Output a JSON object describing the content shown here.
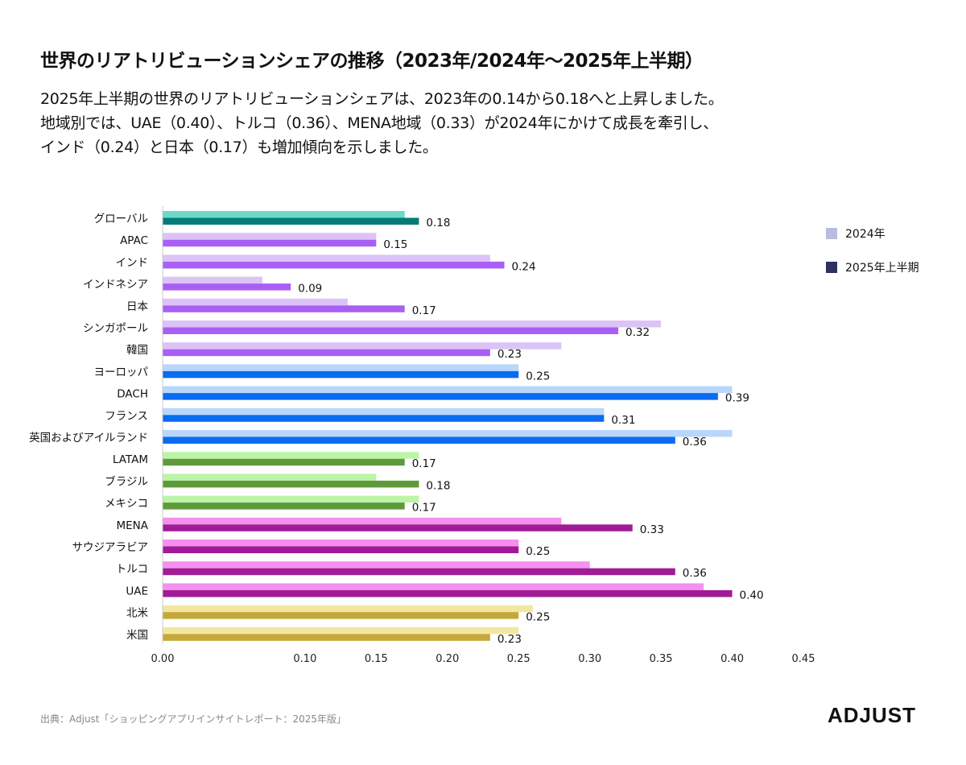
{
  "title": "世界のリアトリビューションシェアの推移（2023年/2024年〜2025年上半期）",
  "subtitle": [
    "2025年上半期の世界のリアトリビューションシェアは、2023年の0.14から0.18へと上昇しました。",
    "地域別では、UAE（0.40）、トルコ（0.36）、MENA地域（0.33）が2024年にかけて成長を牽引し、",
    "インド（0.24）と日本（0.17）も増加傾向を示しました。"
  ],
  "source": "出典：Adjust「ショッピングアプリインサイトレポート：2025年版」",
  "logo": "ADJUST",
  "chart_data": {
    "type": "bar",
    "orientation": "horizontal",
    "xlim": [
      0,
      0.45
    ],
    "xticks": [
      "0.00",
      "0.10",
      "0.15",
      "0.20",
      "0.25",
      "0.30",
      "0.35",
      "0.40",
      "0.45"
    ],
    "xtick_values": [
      0,
      0.1,
      0.15,
      0.2,
      0.25,
      0.3,
      0.35,
      0.4,
      0.45
    ],
    "legend_position": "right",
    "grid": false,
    "categories": [
      "グローバル",
      "APAC",
      "インド",
      "インドネシア",
      "日本",
      "シンガポール",
      "韓国",
      "ヨーロッパ",
      "DACH",
      "フランス",
      "英国およびアイルランド",
      "LATAM",
      "ブラジル",
      "メキシコ",
      "MENA",
      "サウジアラビア",
      "トルコ",
      "UAE",
      "北米",
      "米国"
    ],
    "series": [
      {
        "name": "2024年",
        "legend_color": "#b9bde0",
        "values": [
          0.17,
          0.15,
          0.23,
          0.07,
          0.13,
          0.35,
          0.28,
          0.25,
          0.4,
          0.31,
          0.4,
          0.18,
          0.15,
          0.18,
          0.28,
          0.25,
          0.3,
          0.38,
          0.26,
          0.25
        ]
      },
      {
        "name": "2025年上半期",
        "legend_color": "#2d3060",
        "values": [
          0.18,
          0.15,
          0.24,
          0.09,
          0.17,
          0.32,
          0.23,
          0.25,
          0.39,
          0.31,
          0.36,
          0.17,
          0.18,
          0.17,
          0.33,
          0.25,
          0.36,
          0.4,
          0.25,
          0.23
        ],
        "labels": [
          "0.18",
          "0.15",
          "0.24",
          "0.09",
          "0.17",
          "0.32",
          "0.23",
          "0.25",
          "0.39",
          "0.31",
          "0.36",
          "0.17",
          "0.18",
          "0.17",
          "0.33",
          "0.25",
          "0.36",
          "0.40",
          "0.25",
          "0.23"
        ]
      }
    ],
    "group_colors": {
      "global": {
        "light": "#6dd9c9",
        "dark": "#037c78"
      },
      "apac": {
        "light": "#dcc3f7",
        "dark": "#a95ff5"
      },
      "europe": {
        "light": "#b9d6fb",
        "dark": "#0a6cf0"
      },
      "latam": {
        "light": "#bdf5a8",
        "dark": "#5f9a3a"
      },
      "mena": {
        "light": "#f590ee",
        "dark": "#a01b96"
      },
      "na": {
        "light": "#f3e7a0",
        "dark": "#c4a93a"
      }
    },
    "category_groups": [
      "global",
      "apac",
      "apac",
      "apac",
      "apac",
      "apac",
      "apac",
      "europe",
      "europe",
      "europe",
      "europe",
      "latam",
      "latam",
      "latam",
      "mena",
      "mena",
      "mena",
      "mena",
      "na",
      "na"
    ]
  }
}
